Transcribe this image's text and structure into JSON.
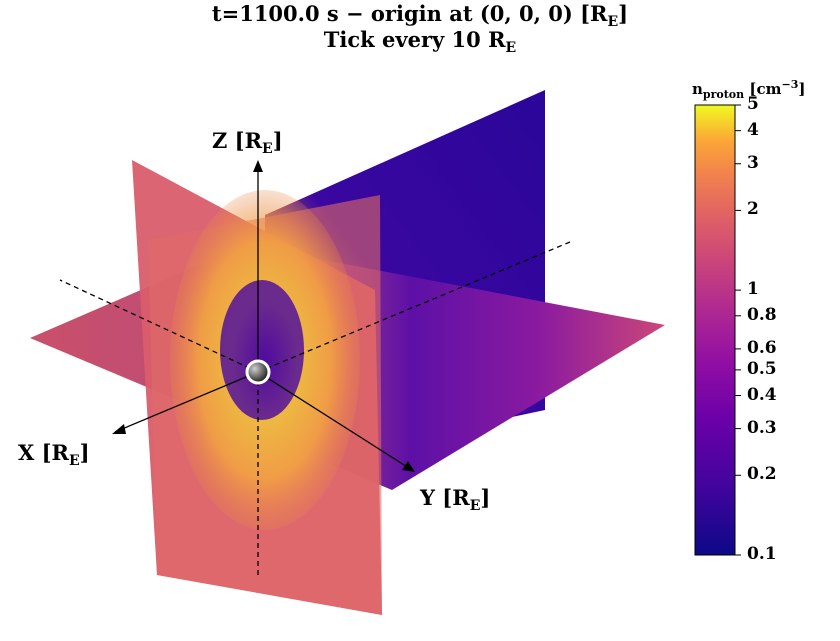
{
  "title": {
    "line1": "t=1100.0 s − origin at (0, 0, 0) [R",
    "line1_sub": "E",
    "line1_end": "]",
    "line2": "Tick every 10 R",
    "line2_sub": "E"
  },
  "axes": {
    "x": {
      "name": "X [R",
      "sub": "E",
      "end": "]"
    },
    "y": {
      "name": "Y [R",
      "sub": "E",
      "end": "]"
    },
    "z": {
      "name": "Z [R",
      "sub": "E",
      "end": "]"
    }
  },
  "colorbar": {
    "label": "n",
    "label_sub": "proton",
    "label_unit": " [cm",
    "label_exp": "−3",
    "label_close": "]",
    "scale": "log",
    "colormap": "plasma",
    "range": [
      0.1,
      5
    ],
    "ticks": [
      {
        "value": 5,
        "label": "5"
      },
      {
        "value": 4,
        "label": "4"
      },
      {
        "value": 3,
        "label": "3"
      },
      {
        "value": 2,
        "label": "2"
      },
      {
        "value": 1,
        "label": "1"
      },
      {
        "value": 0.8,
        "label": "0.8"
      },
      {
        "value": 0.6,
        "label": "0.6"
      },
      {
        "value": 0.5,
        "label": "0.5"
      },
      {
        "value": 0.4,
        "label": "0.4"
      },
      {
        "value": 0.3,
        "label": "0.3"
      },
      {
        "value": 0.2,
        "label": "0.2"
      },
      {
        "value": 0.1,
        "label": "0.1"
      }
    ]
  },
  "chart_data": {
    "type": "heatmap",
    "description_type": "3D orthogonal slice planes (X, Y, Z) of proton density",
    "variable": "n_proton",
    "unit": "cm^-3",
    "time_s": 1100.0,
    "origin": [
      0,
      0,
      0
    ],
    "tick_spacing_RE": 10,
    "planes": [
      "X-Y (equatorial)",
      "X-Z (meridional)",
      "Y-Z"
    ],
    "colors": {
      "low": "#0d0887",
      "mid": "#cc4778",
      "high": "#f0f921"
    }
  }
}
